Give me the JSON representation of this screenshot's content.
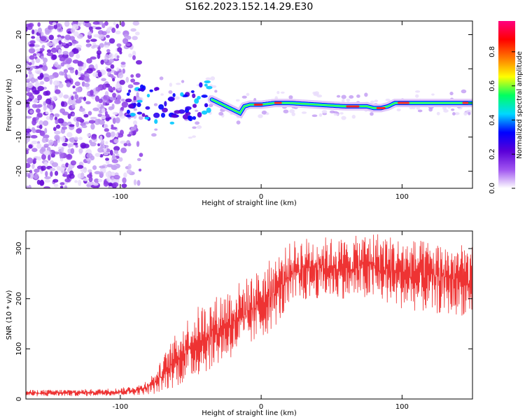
{
  "title": "S162.2023.152.14.29.E30",
  "chart_data": [
    {
      "type": "heatmap",
      "xlabel": "Height of straight line (km)",
      "ylabel": "Frequency (Hz)",
      "xlim": [
        -167,
        150
      ],
      "ylim": [
        -25,
        24
      ],
      "xticks": [
        -100,
        0,
        100
      ],
      "yticks": [
        -20,
        -10,
        0,
        10,
        20
      ],
      "colorbar": {
        "label": "Normalized spectral amplitude",
        "range": [
          0,
          0.98
        ],
        "ticks": [
          0.0,
          0.2,
          0.4,
          0.6,
          0.8
        ],
        "colormap": [
          "#ffffff",
          "#a055f0",
          "#5a00d8",
          "#0000ff",
          "#00d8ff",
          "#00ff60",
          "#ffff00",
          "#ff7a00",
          "#ff0000",
          "#ff0080"
        ]
      },
      "ridge": {
        "description_x": [
          -95,
          -80,
          -70,
          -60,
          -50,
          -45,
          -40,
          -35,
          -30,
          -25,
          -20,
          -15,
          -12,
          -8,
          0,
          10,
          20,
          40,
          60,
          75,
          80,
          85,
          90,
          95,
          100,
          110,
          130,
          150
        ],
        "frequency_hz": [
          0,
          0,
          -1,
          -2,
          -2,
          0,
          2,
          1,
          0,
          -1,
          -2,
          -3,
          -1,
          -0.5,
          -0.5,
          0,
          0,
          -0.5,
          -1,
          -1,
          -1.5,
          -1.5,
          -1,
          0,
          0,
          0,
          0,
          0
        ]
      }
    },
    {
      "type": "line",
      "xlabel": "Height of straight line (km)",
      "ylabel": "SNR (10 * v/v)",
      "xlim": [
        -167,
        150
      ],
      "ylim": [
        0,
        335
      ],
      "xticks": [
        -100,
        0,
        100
      ],
      "yticks": [
        0,
        100,
        200,
        300
      ],
      "series_color": "#ee3333",
      "envelope": {
        "x": [
          -167,
          -120,
          -100,
          -85,
          -75,
          -65,
          -55,
          -45,
          -35,
          -25,
          -15,
          -5,
          5,
          15,
          25,
          40,
          60,
          80,
          100,
          120,
          150
        ],
        "low": [
          5,
          6,
          7,
          8,
          10,
          20,
          30,
          45,
          60,
          75,
          90,
          110,
          130,
          160,
          190,
          200,
          200,
          195,
          180,
          170,
          165
        ],
        "high": [
          18,
          20,
          22,
          30,
          55,
          110,
          155,
          185,
          200,
          220,
          235,
          250,
          275,
          300,
          320,
          325,
          320,
          335,
          320,
          315,
          305
        ]
      }
    }
  ]
}
